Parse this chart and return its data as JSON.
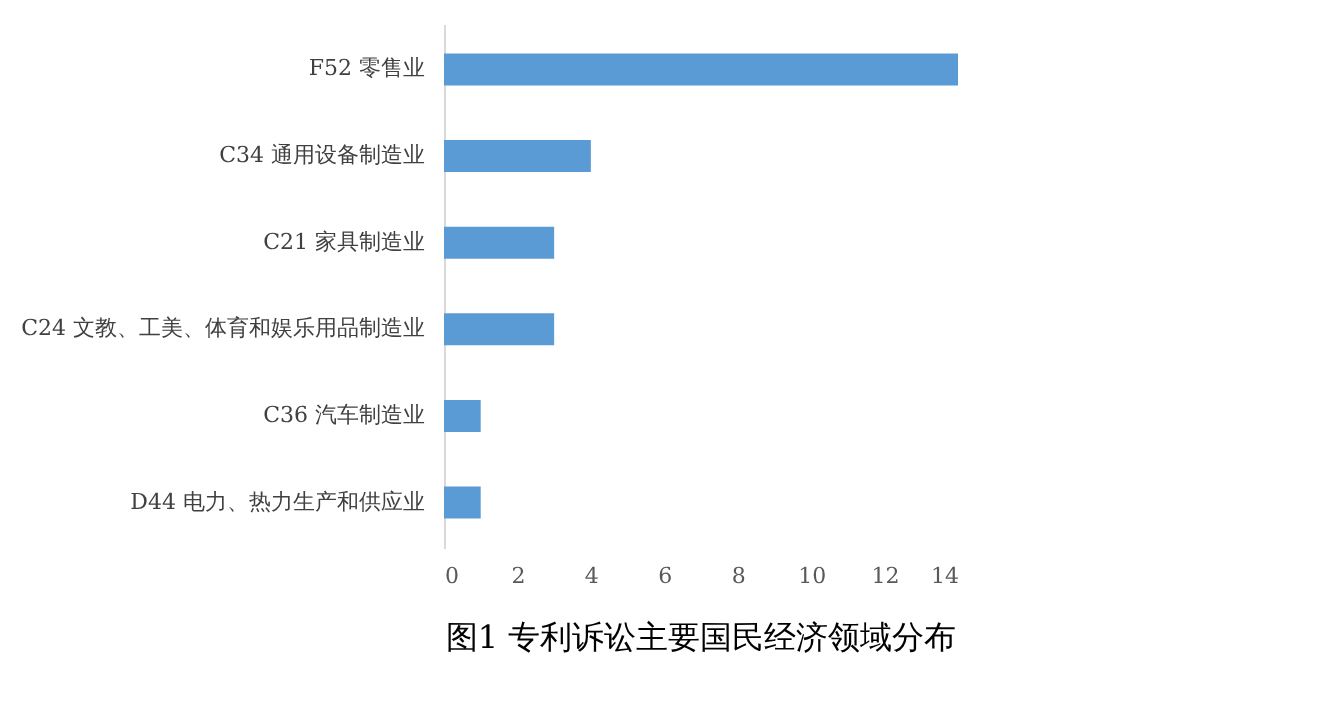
{
  "chart_data": {
    "type": "bar",
    "orientation": "horizontal",
    "title": "图1  专利诉讼主要国民经济领域分布",
    "categories": [
      "F52 零售业",
      "C34 通用设备制造业",
      "C21 家具制造业",
      "C24 文教、工美、体育和娱乐用品制造业",
      "C36 汽车制造业",
      "D44 电力、热力生产和供应业"
    ],
    "values": [
      14,
      4,
      3,
      3,
      1,
      1
    ],
    "color": "#5b9bd5",
    "xlim": [
      0,
      14
    ],
    "xticks": [
      0,
      2,
      4,
      6,
      8,
      10,
      12,
      14
    ],
    "grid": false
  }
}
